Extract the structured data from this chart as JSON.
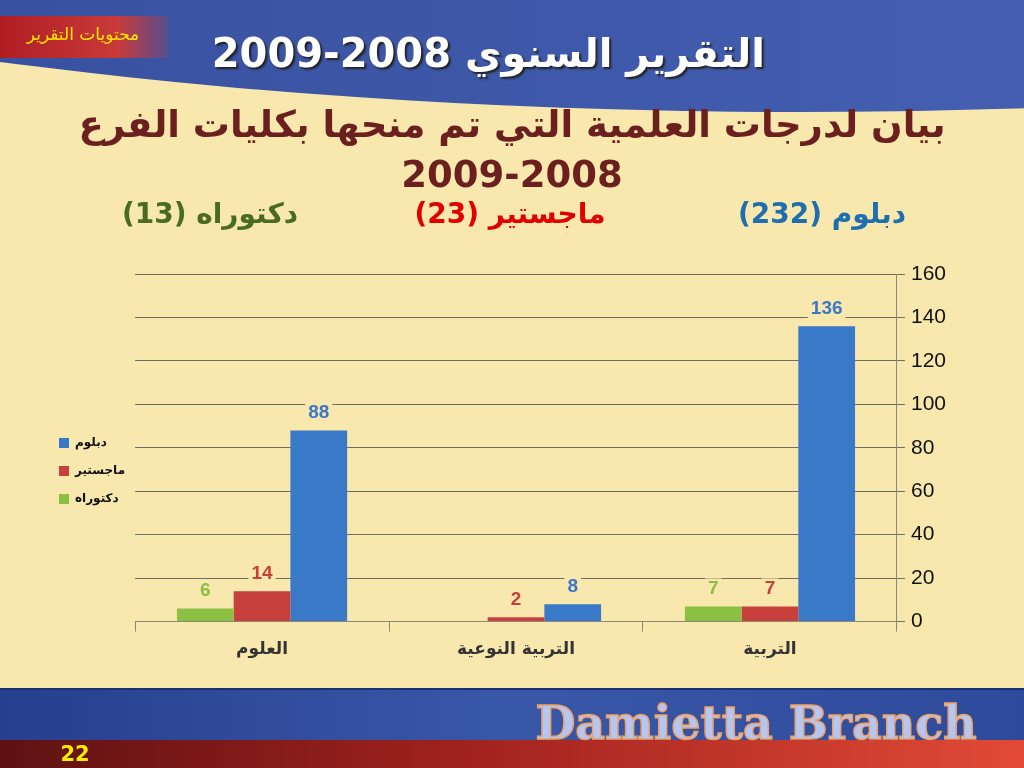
{
  "chart_data": {
    "type": "bar",
    "title": "بيان لدرجات العلمية التي تم منحها بكليات الفرع 2008-2009",
    "annotations": [
      "التقرير السنوي 2008-2009",
      "محتويات التقرير",
      "دكتوراه (13)",
      "ماجستير (23)",
      "دبلوم (232)",
      "Damietta Branch",
      "22"
    ],
    "categories": [
      "العلوم",
      "التربية النوعية",
      "التربية"
    ],
    "series": [
      {
        "name": "دكتوراه",
        "color": "#8cc043",
        "values": [
          6,
          null,
          7
        ]
      },
      {
        "name": "ماجستير",
        "color": "#c8403c",
        "values": [
          14,
          2,
          7
        ]
      },
      {
        "name": "دبلوم",
        "color": "#3a78c8",
        "values": [
          88,
          8,
          136
        ]
      }
    ],
    "ylim": [
      0,
      160
    ],
    "yticks": [
      0,
      20,
      40,
      60,
      80,
      100,
      120,
      140,
      160
    ],
    "grid": "y",
    "legend": "left",
    "data_labels": true
  }
}
